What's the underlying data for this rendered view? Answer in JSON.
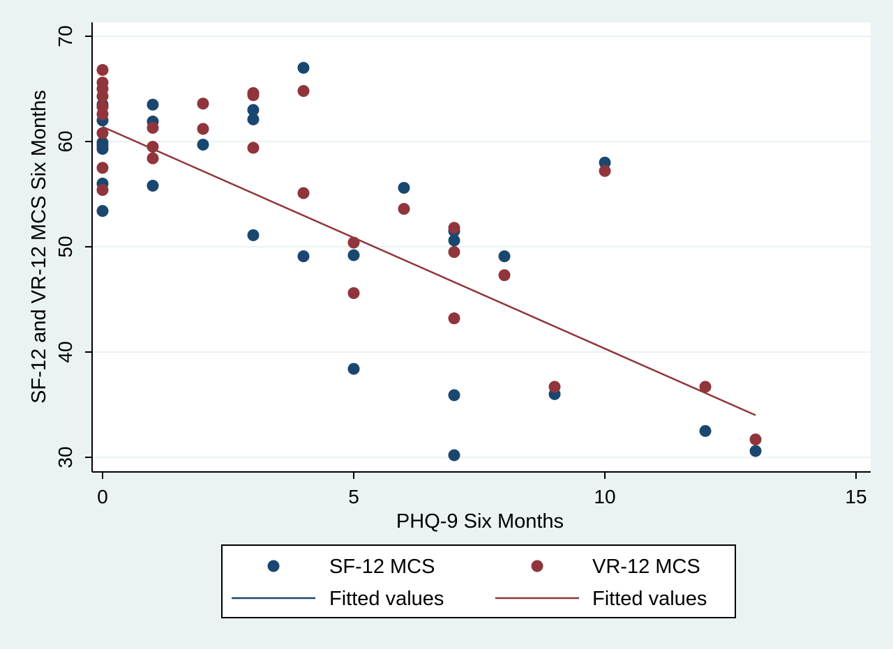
{
  "chart_data": {
    "type": "scatter",
    "title": "",
    "xlabel": "PHQ-9 Six Months",
    "ylabel": "SF-12 and VR-12 MCS Six Months",
    "xlim": [
      0,
      15
    ],
    "ylim": [
      30,
      70
    ],
    "xticks": [
      0,
      5,
      10,
      15
    ],
    "yticks": [
      30,
      40,
      50,
      60,
      70
    ],
    "grid": true,
    "legend_position": "bottom",
    "colors": {
      "sf12": "#1a476f",
      "vr12": "#90353b",
      "plot_bg": "#ffffff",
      "outer_bg": "#eaf2f3",
      "grid": "#eaf2f3"
    },
    "series": [
      {
        "name": "SF-12 MCS",
        "kind": "scatter",
        "color": "#1a476f",
        "points": [
          [
            0,
            63.5
          ],
          [
            0,
            62.0
          ],
          [
            0,
            59.9
          ],
          [
            0,
            59.6
          ],
          [
            0,
            59.3
          ],
          [
            0,
            56.0
          ],
          [
            0,
            53.4
          ],
          [
            1,
            63.5
          ],
          [
            1,
            61.9
          ],
          [
            1,
            55.8
          ],
          [
            2,
            59.7
          ],
          [
            3,
            63.0
          ],
          [
            3,
            62.1
          ],
          [
            3,
            51.1
          ],
          [
            4,
            67.0
          ],
          [
            4,
            49.1
          ],
          [
            5,
            49.2
          ],
          [
            5,
            38.4
          ],
          [
            6,
            55.6
          ],
          [
            7,
            51.5
          ],
          [
            7,
            50.6
          ],
          [
            7,
            35.9
          ],
          [
            7,
            30.2
          ],
          [
            8,
            49.1
          ],
          [
            9,
            36.0
          ],
          [
            10,
            58.0
          ],
          [
            12,
            32.5
          ],
          [
            13,
            30.6
          ]
        ]
      },
      {
        "name": "VR-12 MCS",
        "kind": "scatter",
        "color": "#90353b",
        "points": [
          [
            0,
            66.8
          ],
          [
            0,
            65.6
          ],
          [
            0,
            65.0
          ],
          [
            0,
            64.3
          ],
          [
            0,
            63.3
          ],
          [
            0,
            62.6
          ],
          [
            0,
            60.8
          ],
          [
            0,
            57.5
          ],
          [
            0,
            55.4
          ],
          [
            1,
            61.3
          ],
          [
            1,
            59.5
          ],
          [
            1,
            58.4
          ],
          [
            2,
            63.6
          ],
          [
            2,
            61.2
          ],
          [
            3,
            64.6
          ],
          [
            3,
            64.4
          ],
          [
            3,
            59.4
          ],
          [
            4,
            64.8
          ],
          [
            4,
            55.1
          ],
          [
            5,
            50.4
          ],
          [
            5,
            45.6
          ],
          [
            6,
            53.6
          ],
          [
            7,
            51.8
          ],
          [
            7,
            49.5
          ],
          [
            7,
            43.2
          ],
          [
            8,
            47.3
          ],
          [
            9,
            36.7
          ],
          [
            10,
            57.2
          ],
          [
            12,
            36.7
          ],
          [
            13,
            31.7
          ]
        ]
      },
      {
        "name": "Fitted values",
        "kind": "line",
        "color": "#1a476f",
        "points": []
      },
      {
        "name": "Fitted values",
        "kind": "line",
        "color": "#90353b",
        "points": [
          [
            0,
            61.4
          ],
          [
            13,
            34.0
          ]
        ]
      }
    ],
    "legend": [
      {
        "label": "SF-12 MCS",
        "symbol": "marker",
        "color": "#1a476f"
      },
      {
        "label": "VR-12 MCS",
        "symbol": "marker",
        "color": "#90353b"
      },
      {
        "label": "Fitted values",
        "symbol": "line",
        "color": "#1a476f"
      },
      {
        "label": "Fitted values",
        "symbol": "line",
        "color": "#90353b"
      }
    ]
  }
}
